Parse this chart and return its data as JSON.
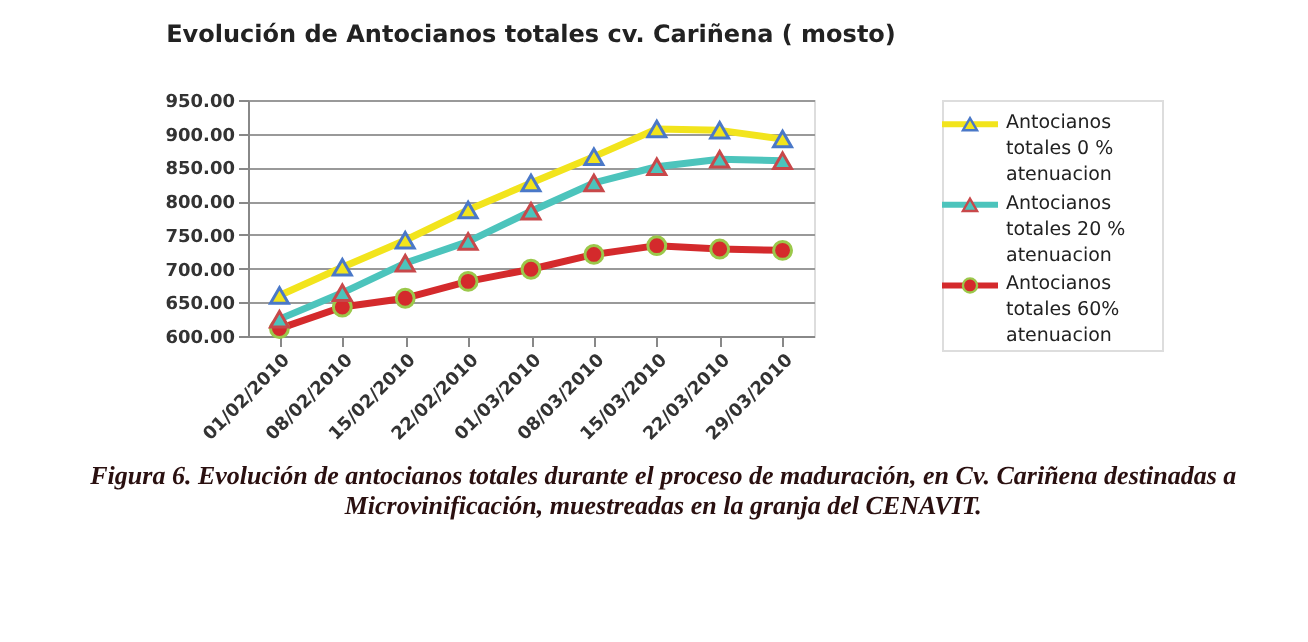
{
  "chart_data": {
    "type": "line",
    "title": "Evolución de Antocianos totales cv. Cariñena ( mosto)",
    "categories": [
      "01/02/2010",
      "08/02/2010",
      "15/02/2010",
      "22/02/2010",
      "01/03/2010",
      "08/03/2010",
      "15/03/2010",
      "22/03/2010",
      "29/03/2010"
    ],
    "series": [
      {
        "name": "Antocianos totales 0 % atenuacion",
        "color": "#f2e41c",
        "marker": "triangle",
        "values": [
          660,
          702,
          742,
          787,
          827,
          866,
          907,
          905,
          892
        ]
      },
      {
        "name": "Antocianos totales 20 % atenuacion",
        "color": "#4cc4bc",
        "marker": "triangle",
        "values": [
          625,
          664,
          708,
          740,
          785,
          827,
          851,
          862,
          860
        ]
      },
      {
        "name": "Antocianos totales 60% atenuacion",
        "color": "#d42a2c",
        "marker": "circle",
        "values": [
          611,
          643,
          656,
          681,
          699,
          721,
          734,
          729,
          727
        ]
      }
    ],
    "ylim": [
      600,
      950
    ],
    "yticks": [
      {
        "value": 600,
        "label": "600.00"
      },
      {
        "value": 650,
        "label": "650.00"
      },
      {
        "value": 700,
        "label": "700.00"
      },
      {
        "value": 750,
        "label": "750.00"
      },
      {
        "value": 800,
        "label": "800.00"
      },
      {
        "value": 850,
        "label": "850.00"
      },
      {
        "value": 900,
        "label": "900.00"
      },
      {
        "value": 950,
        "label": "950.00"
      }
    ],
    "grid": "y",
    "legend": "right",
    "line_style": "solid",
    "annotations": [
      "Figura 6. Evolución de antocianos totales durante el proceso de maduración, en Cv. Cariñena destinadas a Microvinificación, muestreadas en la granja del CENAVIT."
    ]
  }
}
